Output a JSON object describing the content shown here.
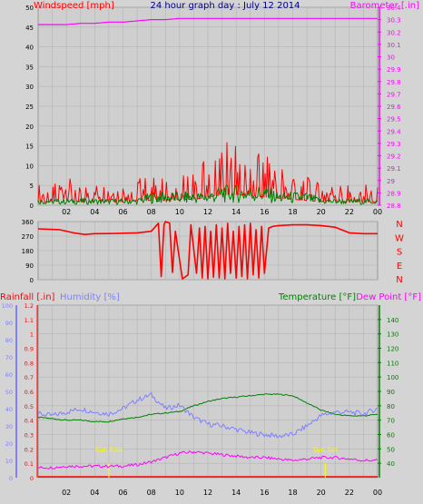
{
  "colors": {
    "background": "#d4d4d4",
    "plot_background": "#cfcfcf",
    "grid": "#b4b4b4",
    "red": "#ff0000",
    "magenta": "#ff00ff",
    "blue": "#0000ff",
    "navy": "#000080",
    "green": "#008000",
    "periwinkle": "#8080ff",
    "yellow": "#ffff00"
  },
  "time_ticks": [
    "02",
    "04",
    "06",
    "08",
    "10",
    "12",
    "14",
    "16",
    "18",
    "20",
    "22",
    "00"
  ],
  "chart_data": [
    {
      "type": "line",
      "panel": "wind_and_pressure",
      "title": "24 hour graph day : July 12 2014",
      "ylabel_left": "Windspeed [mph]",
      "ylabel_right": "Barometer [.in]",
      "ylim_left": [
        0,
        50
      ],
      "yticks_left": [
        "0",
        "5",
        "10",
        "15",
        "20",
        "25",
        "30",
        "35",
        "40",
        "45",
        "50"
      ],
      "ylim_right": [
        28.8,
        30.4
      ],
      "yticks_right": [
        "28.8",
        "28.9",
        "29",
        "29.1",
        "29.2",
        "29.3",
        "29.4",
        "29.5",
        "29.6",
        "29.7",
        "29.8",
        "29.9",
        "30",
        "30.1",
        "30.2",
        "30.3",
        "30.4"
      ],
      "x_hours": [
        0,
        1,
        2,
        3,
        4,
        5,
        6,
        7,
        8,
        9,
        10,
        11,
        12,
        13,
        14,
        15,
        16,
        17,
        18,
        19,
        20,
        21,
        22,
        23,
        24
      ],
      "series": [
        {
          "role": "barometer",
          "color": "#ff00ff",
          "values": [
            30.26,
            30.26,
            30.26,
            30.27,
            30.27,
            30.28,
            30.28,
            30.29,
            30.3,
            30.3,
            30.31,
            30.31,
            30.31,
            30.31,
            30.31,
            30.31,
            30.31,
            30.31,
            30.31,
            30.31,
            30.31,
            30.31,
            30.31,
            30.31,
            30.31
          ]
        },
        {
          "role": "wind_gust",
          "color": "#ff0000",
          "values": [
            3,
            3,
            4,
            3,
            3,
            3,
            3,
            4,
            4,
            4,
            5,
            5,
            7,
            9,
            9,
            8,
            7,
            6,
            5,
            4,
            3,
            3,
            3,
            3,
            3
          ]
        },
        {
          "role": "wind_average",
          "color": "#008000",
          "values": [
            1,
            1,
            1,
            1,
            1,
            1,
            1,
            1,
            2,
            2,
            2,
            2,
            2,
            3,
            3,
            3,
            3,
            2,
            2,
            2,
            1,
            1,
            1,
            1,
            1
          ]
        }
      ]
    },
    {
      "type": "line",
      "panel": "wind_direction",
      "ylim": [
        0,
        360
      ],
      "yticks": [
        "0",
        "90",
        "180",
        "270",
        "360"
      ],
      "compass_labels": [
        "N",
        "W",
        "S",
        "E",
        "N"
      ],
      "series": [
        {
          "role": "direction",
          "color": "#ff0000",
          "points": [
            [
              0,
              315
            ],
            [
              1.5,
              310
            ],
            [
              2.5,
              290
            ],
            [
              3.3,
              280
            ],
            [
              4,
              285
            ],
            [
              5,
              286
            ],
            [
              6,
              288
            ],
            [
              7,
              290
            ],
            [
              8,
              300
            ],
            [
              8.5,
              350
            ],
            [
              8.7,
              20
            ],
            [
              8.9,
              340
            ],
            [
              9.0,
              360
            ],
            [
              9.3,
              350
            ],
            [
              9.5,
              45
            ],
            [
              9.7,
              300
            ],
            [
              10.2,
              5
            ],
            [
              10.6,
              30
            ],
            [
              10.8,
              340
            ],
            [
              11.2,
              40
            ],
            [
              11.4,
              320
            ],
            [
              11.6,
              10
            ],
            [
              11.8,
              330
            ],
            [
              12.0,
              5
            ],
            [
              12.2,
              300
            ],
            [
              12.4,
              15
            ],
            [
              12.6,
              340
            ],
            [
              12.8,
              10
            ],
            [
              13.0,
              320
            ],
            [
              13.2,
              5
            ],
            [
              13.4,
              350
            ],
            [
              13.6,
              40
            ],
            [
              13.8,
              300
            ],
            [
              14.0,
              10
            ],
            [
              14.2,
              330
            ],
            [
              14.4,
              20
            ],
            [
              14.6,
              340
            ],
            [
              14.8,
              5
            ],
            [
              15.0,
              350
            ],
            [
              15.2,
              30
            ],
            [
              15.4,
              310
            ],
            [
              15.6,
              10
            ],
            [
              15.8,
              330
            ],
            [
              16.0,
              40
            ],
            [
              16.3,
              320
            ],
            [
              16.6,
              330
            ],
            [
              17,
              335
            ],
            [
              18,
              340
            ],
            [
              19,
              340
            ],
            [
              20,
              335
            ],
            [
              21,
              325
            ],
            [
              22,
              290
            ],
            [
              23,
              285
            ],
            [
              24,
              285
            ]
          ]
        }
      ]
    },
    {
      "type": "line",
      "panel": "rain_humidity_temperature",
      "ylabel_left": "Rainfall [.in]",
      "ylabel_left2": "Humidity [%]",
      "ylabel_right": "Temperature [°F]",
      "ylabel_right2": "Dew Point [°F]",
      "ylim_rain": [
        0,
        1.2
      ],
      "yticks_rain": [
        "0",
        "0.1",
        "0.2",
        "0.3",
        "0.4",
        "0.5",
        "0.6",
        "0.7",
        "0.8",
        "0.9",
        "1",
        "1.1",
        "1.2"
      ],
      "ylim_humidity": [
        0,
        100
      ],
      "yticks_humidity": [
        "0",
        "10",
        "20",
        "30",
        "40",
        "50",
        "60",
        "70",
        "80",
        "90",
        "100"
      ],
      "ylim_temperature": [
        30,
        150
      ],
      "yticks_temperature": [
        "40",
        "50",
        "60",
        "70",
        "80",
        "90",
        "100",
        "110",
        "120",
        "130",
        "140"
      ],
      "annotations": [
        {
          "text": "Sun Rise",
          "hour": 5.0,
          "color": "#ffff00"
        },
        {
          "text": "Sun Set",
          "hour": 20.3,
          "color": "#ffff00"
        }
      ],
      "x_hours": [
        0,
        1,
        2,
        3,
        4,
        5,
        6,
        7,
        8,
        9,
        10,
        11,
        12,
        13,
        14,
        15,
        16,
        17,
        18,
        19,
        20,
        21,
        22,
        23,
        24
      ],
      "series": [
        {
          "role": "humidity",
          "axis": "humidity",
          "color": "#8080ff",
          "values": [
            37,
            36,
            38,
            40,
            38,
            37,
            40,
            45,
            48,
            40,
            42,
            35,
            31,
            30,
            28,
            26,
            25,
            24,
            25,
            30,
            36,
            38,
            38,
            37,
            40
          ]
        },
        {
          "role": "temperature",
          "axis": "temperature",
          "color": "#008000",
          "values": [
            72,
            71,
            70,
            70,
            69,
            69,
            71,
            72,
            74,
            75,
            76,
            80,
            83,
            85,
            86,
            87,
            88,
            88,
            87,
            82,
            77,
            74,
            73,
            73,
            74
          ]
        },
        {
          "role": "dew_point",
          "axis": "temperature",
          "color": "#ff00ff",
          "values": [
            37,
            37,
            38,
            38,
            38,
            38,
            38,
            39,
            41,
            44,
            47,
            48,
            47,
            46,
            45,
            44,
            44,
            43,
            42,
            43,
            44,
            44,
            43,
            42,
            42
          ]
        }
      ]
    }
  ]
}
